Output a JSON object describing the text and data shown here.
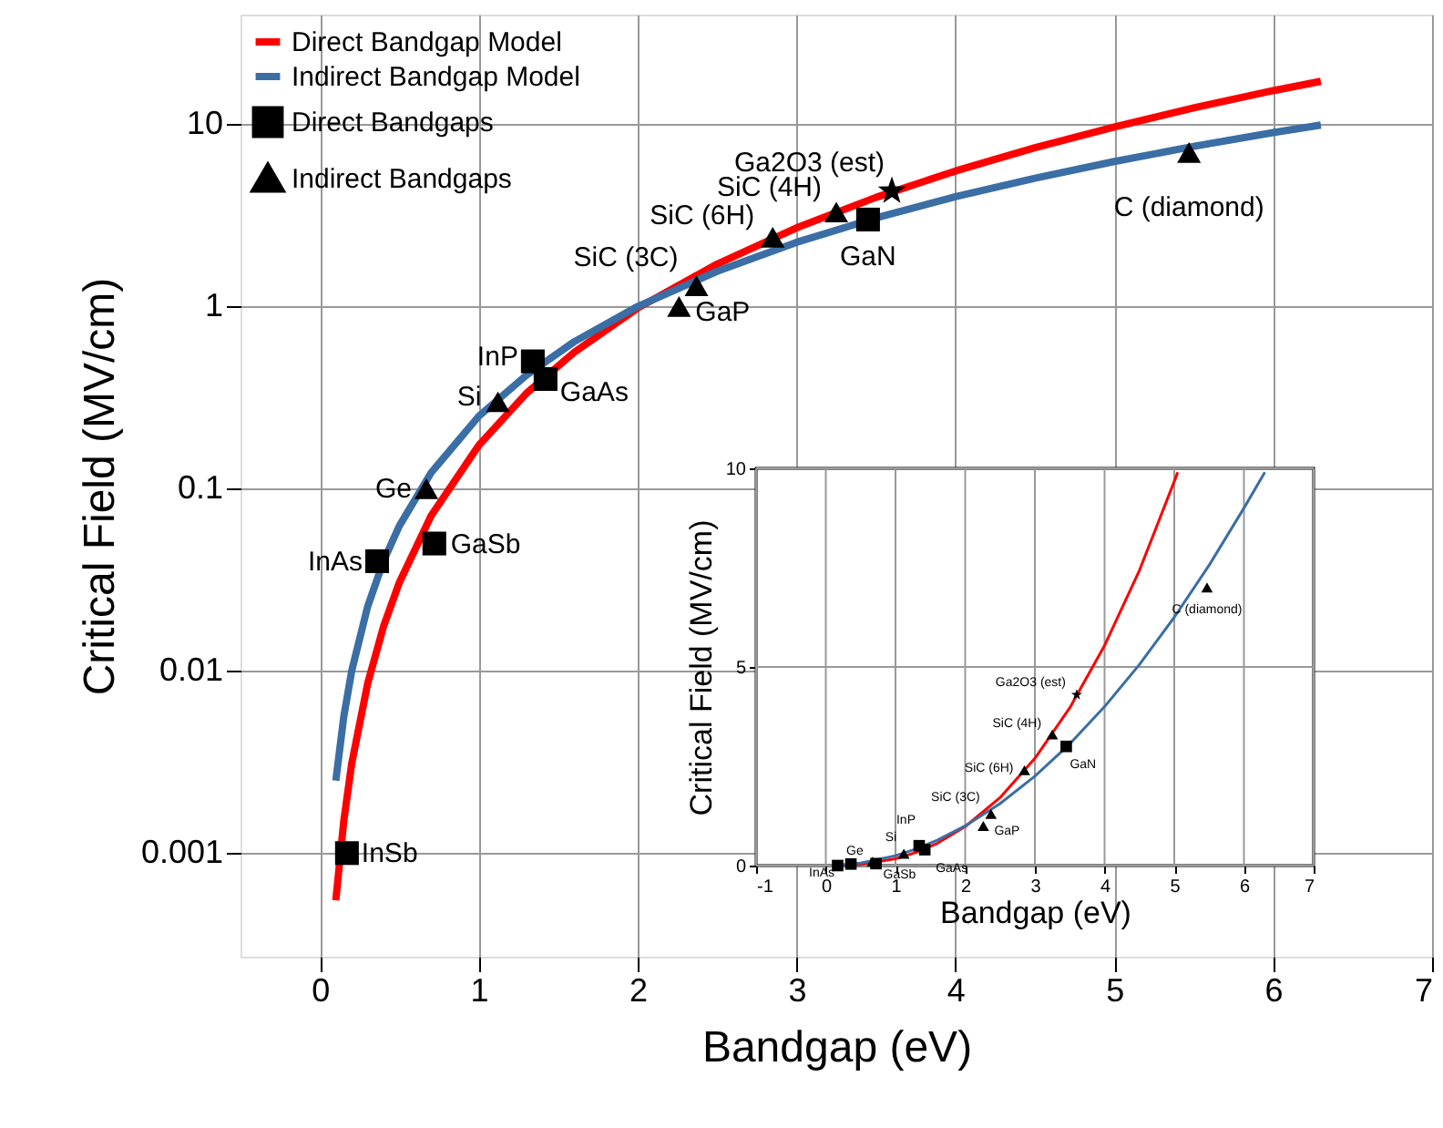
{
  "chart_data": [
    {
      "type": "line",
      "xlabel": "Bandgap (eV)",
      "ylabel": "Critical Field (MV/cm)",
      "log": "y",
      "grid": true,
      "legend": "top left",
      "xlim": [
        -0.5,
        7
      ],
      "xticks": [
        0,
        1,
        2,
        3,
        4,
        5,
        6,
        7
      ],
      "ylim": [
        0.00027,
        40
      ],
      "yticks": [
        0.001,
        0.01,
        0.1,
        1,
        10
      ],
      "series": [
        {
          "name": "Direct Bandgap Model",
          "color": "#ff0000",
          "x": [
            0.1,
            0.15,
            0.2,
            0.3,
            0.4,
            0.5,
            0.7,
            1.0,
            1.3,
            1.6,
            2.0,
            2.5,
            3.0,
            3.5,
            4.0,
            4.5,
            5.0,
            5.5,
            6.0,
            6.3
          ],
          "values": [
            0.00055,
            0.0015,
            0.0031,
            0.0085,
            0.0175,
            0.0306,
            0.071,
            0.173,
            0.334,
            0.56,
            0.98,
            1.71,
            2.7,
            3.97,
            5.54,
            7.43,
            9.67,
            12.3,
            15.3,
            17.2
          ]
        },
        {
          "name": "Indirect Bandgap Model",
          "color": "#3a6ea5",
          "x": [
            0.1,
            0.15,
            0.2,
            0.3,
            0.4,
            0.5,
            0.7,
            1.0,
            1.3,
            1.6,
            2.0,
            2.5,
            3.0,
            3.5,
            4.0,
            4.5,
            5.0,
            5.5,
            6.0,
            6.3
          ],
          "values": [
            0.0025,
            0.0056,
            0.01,
            0.0225,
            0.04,
            0.0625,
            0.1225,
            0.25,
            0.42,
            0.64,
            1.0,
            1.56,
            2.25,
            3.06,
            4.0,
            5.06,
            6.25,
            7.56,
            9.0,
            9.9
          ]
        },
        {
          "name": "Direct Bandgaps",
          "type": "scatter",
          "marker": "square",
          "color": "#000000",
          "x": [
            0.17,
            0.36,
            0.72,
            1.34,
            1.42,
            3.45
          ],
          "values": [
            0.001,
            0.04,
            0.05,
            0.5,
            0.4,
            3.0
          ]
        },
        {
          "name": "Indirect Bandgaps",
          "type": "scatter",
          "marker": "triangle",
          "color": "#000000",
          "x": [
            0.67,
            1.12,
            2.26,
            2.37,
            2.85,
            3.25,
            5.47
          ],
          "values": [
            0.1,
            0.3,
            1.0,
            1.3,
            2.4,
            3.3,
            7.0
          ]
        },
        {
          "type": "scatter",
          "marker": "star",
          "color": "#000000",
          "x": [
            3.6
          ],
          "values": [
            4.3
          ]
        }
      ],
      "annotations": [
        {
          "text": "InSb",
          "x": 0.17,
          "y": 0.001
        },
        {
          "text": "InAs",
          "x": 0.36,
          "y": 0.04
        },
        {
          "text": "GaSb",
          "x": 0.72,
          "y": 0.05
        },
        {
          "text": "Ge",
          "x": 0.67,
          "y": 0.1
        },
        {
          "text": "Si",
          "x": 1.12,
          "y": 0.3
        },
        {
          "text": "InP",
          "x": 1.34,
          "y": 0.5
        },
        {
          "text": "GaAs",
          "x": 1.42,
          "y": 0.4
        },
        {
          "text": "GaP",
          "x": 2.26,
          "y": 1.0
        },
        {
          "text": "SiC (3C)",
          "x": 2.37,
          "y": 1.3
        },
        {
          "text": "SiC (6H)",
          "x": 2.85,
          "y": 2.4
        },
        {
          "text": "SiC (4H)",
          "x": 3.25,
          "y": 3.3
        },
        {
          "text": "Ga2O3 (est)",
          "x": 3.6,
          "y": 4.3
        },
        {
          "text": "GaN",
          "x": 3.45,
          "y": 3.0
        },
        {
          "text": "C (diamond)",
          "x": 5.47,
          "y": 7.0
        }
      ]
    },
    {
      "type": "line",
      "xlabel": "Bandgap (eV)",
      "ylabel": "Critical Field (MV/cm)",
      "grid": true,
      "xlim": [
        -1,
        7
      ],
      "xticks": [
        -1,
        0,
        1,
        2,
        3,
        4,
        5,
        6,
        7
      ],
      "ylim": [
        0,
        10
      ],
      "yticks": [
        0,
        5,
        10
      ],
      "series": [
        {
          "color": "#ff0000",
          "x": [
            0.1,
            0.5,
            1.0,
            1.3,
            1.6,
            2.0,
            2.5,
            3.0,
            3.5,
            4.0,
            4.5,
            5.0,
            5.05
          ],
          "values": [
            0.00055,
            0.0306,
            0.173,
            0.334,
            0.56,
            0.98,
            1.71,
            2.7,
            3.97,
            5.54,
            7.43,
            9.67,
            9.9
          ]
        },
        {
          "color": "#3a6ea5",
          "x": [
            0.1,
            0.5,
            1.0,
            1.3,
            1.6,
            2.0,
            2.5,
            3.0,
            3.5,
            4.0,
            4.5,
            5.0,
            5.5,
            6.0,
            6.3
          ],
          "values": [
            0.0025,
            0.0625,
            0.25,
            0.42,
            0.64,
            1.0,
            1.56,
            2.25,
            3.06,
            4.0,
            5.06,
            6.25,
            7.56,
            9.0,
            9.9
          ]
        },
        {
          "type": "scatter",
          "marker": "square",
          "color": "#000000",
          "x": [
            0.17,
            0.36,
            0.72,
            1.34,
            1.42,
            3.45
          ],
          "values": [
            0.001,
            0.04,
            0.05,
            0.5,
            0.4,
            3.0
          ]
        },
        {
          "type": "scatter",
          "marker": "triangle",
          "color": "#000000",
          "x": [
            0.67,
            1.12,
            2.26,
            2.37,
            2.85,
            3.25,
            5.47
          ],
          "values": [
            0.1,
            0.3,
            1.0,
            1.3,
            2.4,
            3.3,
            7.0
          ]
        },
        {
          "type": "scatter",
          "marker": "star",
          "color": "#000000",
          "x": [
            3.6
          ],
          "values": [
            4.3
          ]
        }
      ],
      "annotations": [
        {
          "text": "InAs",
          "x": 0.36,
          "y": 0.04
        },
        {
          "text": "GaSb",
          "x": 0.72,
          "y": 0.05
        },
        {
          "text": "Ge",
          "x": 0.67,
          "y": 0.1
        },
        {
          "text": "Si",
          "x": 1.12,
          "y": 0.3
        },
        {
          "text": "InP",
          "x": 1.34,
          "y": 0.5
        },
        {
          "text": "GaAs",
          "x": 1.42,
          "y": 0.4
        },
        {
          "text": "GaP",
          "x": 2.26,
          "y": 1.0
        },
        {
          "text": "SiC (3C)",
          "x": 2.37,
          "y": 1.3
        },
        {
          "text": "SiC (6H)",
          "x": 2.85,
          "y": 2.4
        },
        {
          "text": "SiC (4H)",
          "x": 3.25,
          "y": 3.3
        },
        {
          "text": "GaN",
          "x": 3.45,
          "y": 3.0
        },
        {
          "text": "Ga2O3 (est)",
          "x": 3.6,
          "y": 4.3
        },
        {
          "text": "C (diamond)",
          "x": 5.47,
          "y": 7.0
        }
      ]
    }
  ]
}
